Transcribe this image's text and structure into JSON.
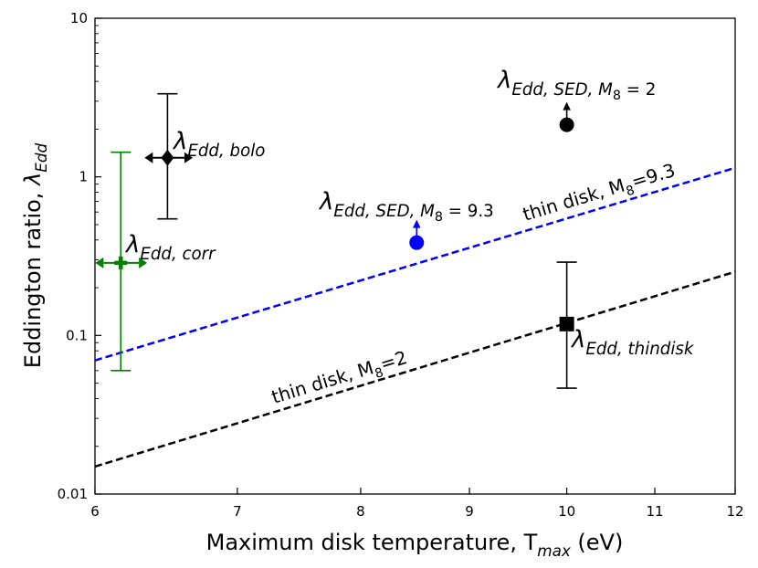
{
  "chart_data": {
    "type": "scatter",
    "xlabel": [
      {
        "text": "Maximum disk temperature, T"
      },
      {
        "text": "max",
        "level": 1,
        "italic": true
      },
      {
        "text": " (eV)"
      }
    ],
    "ylabel": [
      {
        "text": "Eddington ratio, "
      },
      {
        "text": "λ",
        "italic": true
      },
      {
        "text": "Edd",
        "level": 1,
        "italic": true
      }
    ],
    "xlog": true,
    "ylog": true,
    "xlim": [
      6,
      12
    ],
    "ylim": [
      0.01,
      10
    ],
    "xticks": [
      6,
      7,
      8,
      9,
      10,
      11,
      12
    ],
    "yticks": [
      0.01,
      0.1,
      1,
      10
    ],
    "points": [
      {
        "x": 6.17,
        "y": 0.287,
        "color": "#008000",
        "marker": "plus",
        "xerr": [
          6.02,
          6.33
        ],
        "xarrows": true,
        "yerr": [
          0.06,
          1.43
        ],
        "label": [
          {
            "text": "λ",
            "italic": true
          },
          {
            "text": "Edd, corr",
            "level": 1,
            "italic": true
          }
        ]
      },
      {
        "x": 6.49,
        "y": 1.32,
        "color": "#000000",
        "marker": "diamond",
        "xerr": [
          6.35,
          6.65
        ],
        "xarrows": true,
        "yerr": [
          0.543,
          3.34
        ],
        "label": [
          {
            "text": "λ",
            "italic": true
          },
          {
            "text": "Edd, bolo",
            "level": 1,
            "italic": true
          }
        ]
      },
      {
        "x": 8.5,
        "y": 0.385,
        "color": "#0000ff",
        "marker": "circle",
        "arrow": "up",
        "label": [
          {
            "text": "λ",
            "italic": true
          },
          {
            "text": "Edd, SED, M",
            "level": 1,
            "italic": true
          },
          {
            "text": "8",
            "level": 2
          },
          {
            "text": " = 9.3",
            "level": 1
          }
        ]
      },
      {
        "x": 10,
        "y": 2.13,
        "color": "#000000",
        "marker": "circle",
        "arrow": "up",
        "label": [
          {
            "text": "λ",
            "italic": true
          },
          {
            "text": "Edd, SED, M",
            "level": 1,
            "italic": true
          },
          {
            "text": "8",
            "level": 2
          },
          {
            "text": " = 2",
            "level": 1
          }
        ]
      },
      {
        "x": 10,
        "y": 0.118,
        "color": "#000000",
        "marker": "square",
        "yerr": [
          0.0465,
          0.29
        ],
        "label": [
          {
            "text": "λ",
            "italic": true
          },
          {
            "text": "Edd, thindisk",
            "level": 1,
            "italic": true
          }
        ]
      }
    ],
    "lines": [
      {
        "x": [
          6,
          12
        ],
        "values": [
          0.0696,
          1.14
        ],
        "color": "#0000ff",
        "label": [
          {
            "text": "thin disk, M"
          },
          {
            "text": "8",
            "level": 1
          },
          {
            "text": "=9.3"
          }
        ]
      },
      {
        "x": [
          6,
          12
        ],
        "values": [
          0.0149,
          0.252
        ],
        "color": "#000000",
        "label": [
          {
            "text": "thin disk, M"
          },
          {
            "text": "8",
            "level": 1
          },
          {
            "text": "=2"
          }
        ]
      }
    ]
  }
}
